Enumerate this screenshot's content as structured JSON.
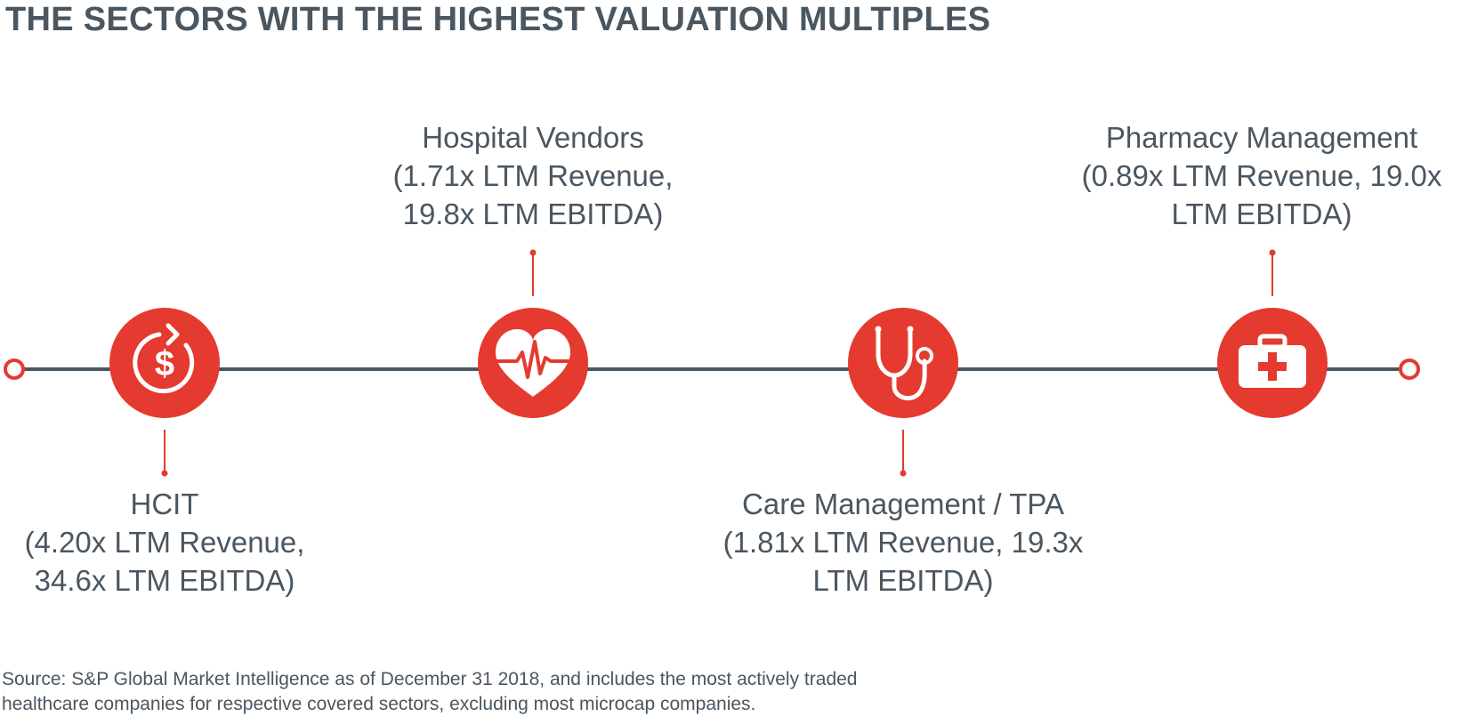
{
  "title": "THE SECTORS WITH THE HIGHEST VALUATION MULTIPLES",
  "colors": {
    "accent": "#e53a2f",
    "line": "#4a5660",
    "text": "#4a5660"
  },
  "sectors": [
    {
      "name": "HCIT",
      "line1": "(4.20x LTM Revenue,",
      "line2": "34.6x LTM EBITDA)",
      "icon": "dollar-refresh-icon"
    },
    {
      "name": "Hospital Vendors",
      "line1": "(1.71x LTM Revenue,",
      "line2": "19.8x LTM EBITDA)",
      "icon": "heart-pulse-icon"
    },
    {
      "name": "Care Management / TPA",
      "line1": "(1.81x LTM Revenue, 19.3x",
      "line2": "LTM EBITDA)",
      "icon": "stethoscope-icon"
    },
    {
      "name": "Pharmacy Management",
      "line1": "(0.89x LTM Revenue, 19.0x",
      "line2": "LTM EBITDA)",
      "icon": "first-aid-kit-icon"
    }
  ],
  "source": {
    "line1": "Source: S&P Global Market Intelligence as of December 31 2018, and includes the most actively traded",
    "line2": "healthcare companies for respective covered sectors, excluding most microcap companies."
  }
}
